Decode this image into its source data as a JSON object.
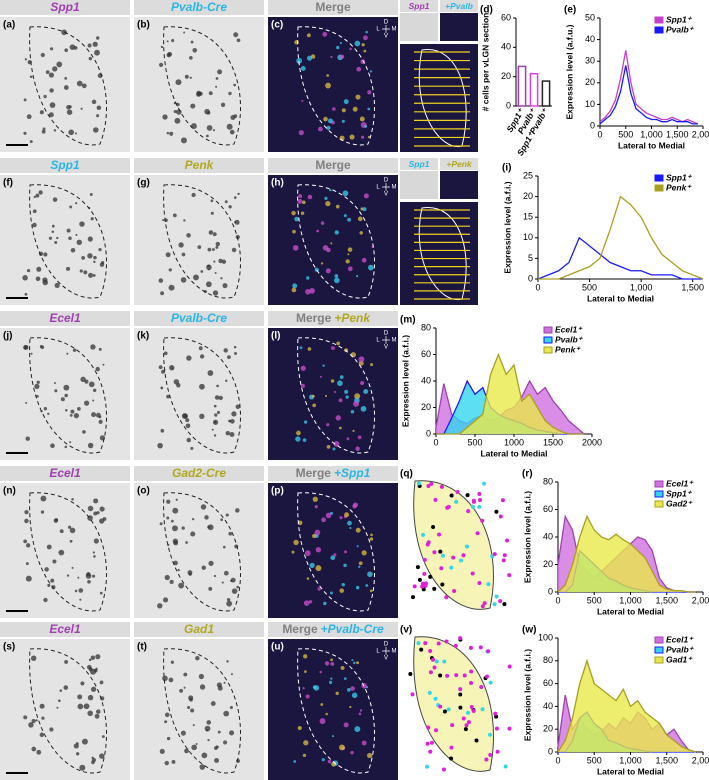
{
  "panels": [
    {
      "letter": "(a)",
      "title": "Spp1",
      "color": "#a040b0"
    },
    {
      "letter": "(b)",
      "title": "Pvalb-Cre",
      "color": "#29b6e6"
    },
    {
      "letter": "(c)",
      "title": "Merge",
      "color": "#808080"
    },
    {
      "letter": "(f)",
      "title": "Spp1",
      "color": "#29b6e6"
    },
    {
      "letter": "(g)",
      "title": "Penk",
      "color": "#b0a820"
    },
    {
      "letter": "(h)",
      "title": "Merge",
      "color": "#808080"
    },
    {
      "letter": "(j)",
      "title": "Ecel1",
      "color": "#a040b0"
    },
    {
      "letter": "(k)",
      "title": "Pvalb-Cre",
      "color": "#29b6e6"
    },
    {
      "letter": "(l)",
      "title": "Merge",
      "color": "#808080",
      "suffix": "+Penk",
      "suffix_color": "#b0a820"
    },
    {
      "letter": "(n)",
      "title": "Ecel1",
      "color": "#a040b0"
    },
    {
      "letter": "(o)",
      "title": "Gad2-Cre",
      "color": "#b0a820"
    },
    {
      "letter": "(p)",
      "title": "Merge",
      "color": "#808080",
      "suffix": "+Spp1",
      "suffix_color": "#29b6e6"
    },
    {
      "letter": "(s)",
      "title": "Ecel1",
      "color": "#a040b0"
    },
    {
      "letter": "(t)",
      "title": "Gad1",
      "color": "#b0a820"
    },
    {
      "letter": "(u)",
      "title": "Merge",
      "color": "#808080",
      "suffix": "+Pvalb-Cre",
      "suffix_color": "#29b6e6"
    }
  ],
  "insets": [
    [
      {
        "label": "Spp1",
        "color": "#a040b0"
      },
      {
        "label": "+Pvalb",
        "color": "#29b6e6"
      }
    ],
    [
      {
        "label": "Spp1",
        "color": "#29b6e6"
      },
      {
        "label": "+Penk",
        "color": "#b0a820"
      }
    ]
  ],
  "compass": {
    "d": "D",
    "v": "V",
    "l": "L",
    "m": "M"
  },
  "diagrams": [
    {
      "letter": "(q)"
    },
    {
      "letter": "(v)"
    }
  ],
  "chart_data": [
    {
      "type": "bar",
      "label": "(d)",
      "ylabel": "# cells per vLGN section",
      "categories": [
        "Spp1⁺",
        "Pvalb⁺",
        "Spp1⁺Pvalb⁺"
      ],
      "values": [
        27,
        22,
        17
      ],
      "colors": [
        "#a040b0",
        "#e040e0",
        "#222222"
      ],
      "ylim": [
        0,
        60
      ],
      "yticks": [
        0,
        20,
        40,
        60
      ]
    },
    {
      "type": "line",
      "label": "(e)",
      "ylabel": "Expression level (a.f.u.)",
      "xlabel": "Lateral to Medial",
      "x": [
        0,
        100,
        200,
        300,
        400,
        500,
        600,
        700,
        800,
        900,
        1000,
        1100,
        1200,
        1300,
        1400,
        1500,
        1600,
        1700,
        1800,
        1900
      ],
      "series": [
        {
          "name": "Spp1⁺",
          "color": "#c43ed0",
          "values": [
            2,
            4,
            7,
            12,
            22,
            35,
            20,
            10,
            8,
            6,
            5,
            4,
            3,
            3,
            4,
            3,
            2,
            3,
            2,
            1
          ]
        },
        {
          "name": "Pvalb⁺",
          "color": "#1a1aff",
          "values": [
            1,
            3,
            5,
            9,
            16,
            28,
            15,
            8,
            6,
            4,
            3,
            3,
            2,
            2,
            3,
            2,
            2,
            2,
            1,
            1
          ]
        }
      ],
      "xlim": [
        0,
        2000
      ],
      "ylim": [
        0,
        50
      ],
      "xticks": [
        0,
        500,
        {
          "value": 1000,
          "label": "1,000"
        },
        {
          "value": 1500,
          "label": "1,500"
        },
        {
          "value": 2000,
          "label": "2,000"
        }
      ],
      "yticks": [
        0,
        10,
        20,
        30,
        40,
        50
      ]
    },
    {
      "type": "line",
      "label": "(i)",
      "ylabel": "Expression level (a.f.i.)",
      "xlabel": "Lateral to Medial",
      "x": [
        0,
        100,
        200,
        300,
        400,
        500,
        600,
        700,
        800,
        900,
        1000,
        1100,
        1200,
        1300,
        1400,
        1500,
        1600
      ],
      "series": [
        {
          "name": "Spp1⁺",
          "color": "#1a1aff",
          "values": [
            0,
            1,
            2,
            4,
            10,
            8,
            6,
            4,
            3,
            2,
            2,
            1,
            1,
            1,
            0,
            0,
            0
          ]
        },
        {
          "name": "Penk⁺",
          "color": "#a8a020",
          "values": [
            0,
            0,
            0,
            1,
            2,
            3,
            5,
            12,
            20,
            18,
            15,
            10,
            6,
            4,
            2,
            1,
            0
          ]
        }
      ],
      "xlim": [
        0,
        1600
      ],
      "ylim": [
        0,
        25
      ],
      "xticks": [
        0,
        500,
        {
          "value": 1000,
          "label": "1,000"
        },
        {
          "value": 1500,
          "label": "1,500"
        }
      ],
      "yticks": [
        0,
        5,
        10,
        15,
        20,
        25
      ]
    },
    {
      "type": "area",
      "label": "(m)",
      "ylabel": "Expression level (a.f.i.)",
      "xlabel": "Lateral to Medial",
      "x": [
        0,
        100,
        200,
        300,
        400,
        500,
        600,
        700,
        800,
        900,
        1000,
        1100,
        1200,
        1300,
        1400,
        1500,
        1600,
        1700,
        1800,
        1900
      ],
      "series": [
        {
          "name": "Ecel1⁺",
          "color": "#a040b0",
          "fill": "#d070e0",
          "values": [
            5,
            38,
            15,
            10,
            8,
            12,
            14,
            10,
            12,
            18,
            20,
            28,
            40,
            30,
            35,
            25,
            18,
            10,
            5,
            0
          ]
        },
        {
          "name": "Pvalb⁺",
          "color": "#1a1aff",
          "fill": "#33d6f0",
          "values": [
            0,
            0,
            12,
            25,
            40,
            30,
            35,
            20,
            15,
            12,
            10,
            8,
            5,
            3,
            2,
            1,
            0,
            0,
            0,
            0
          ]
        },
        {
          "name": "Penk⁺",
          "color": "#a8a020",
          "fill": "#e8e84a",
          "values": [
            0,
            0,
            0,
            0,
            5,
            10,
            15,
            45,
            60,
            45,
            52,
            25,
            30,
            20,
            10,
            5,
            2,
            0,
            0,
            0
          ]
        }
      ],
      "xlim": [
        0,
        2000
      ],
      "ylim": [
        0,
        80
      ],
      "xticks": [
        0,
        500,
        1000,
        1500,
        2000
      ],
      "yticks": [
        0,
        20,
        40,
        60,
        80
      ]
    },
    {
      "type": "area",
      "label": "(r)",
      "ylabel": "Expression level (a.f.i.)",
      "xlabel": "Lateral to Medial",
      "x": [
        0,
        100,
        200,
        300,
        400,
        500,
        600,
        700,
        800,
        900,
        1000,
        1100,
        1200,
        1300,
        1400,
        1500,
        1600,
        1700,
        1800,
        1900
      ],
      "series": [
        {
          "name": "Ecel1⁺",
          "color": "#a040b0",
          "fill": "#d070e0",
          "values": [
            20,
            55,
            45,
            20,
            15,
            10,
            15,
            20,
            25,
            30,
            35,
            40,
            38,
            30,
            10,
            3,
            1,
            0,
            0,
            0
          ]
        },
        {
          "name": "Spp1⁺",
          "color": "#1a1aff",
          "fill": "#33d6f0",
          "values": [
            0,
            0,
            5,
            30,
            25,
            20,
            15,
            10,
            8,
            5,
            3,
            2,
            1,
            0,
            0,
            0,
            0,
            0,
            0,
            0
          ]
        },
        {
          "name": "Gad2⁺",
          "color": "#a8a020",
          "fill": "#e8e84a",
          "values": [
            0,
            5,
            20,
            40,
            55,
            45,
            40,
            38,
            42,
            38,
            35,
            30,
            25,
            15,
            5,
            2,
            1,
            1,
            0,
            0
          ]
        }
      ],
      "xlim": [
        0,
        2000
      ],
      "ylim": [
        0,
        80
      ],
      "xticks": [
        0,
        500,
        {
          "value": 1000,
          "label": "1,000"
        },
        {
          "value": 1500,
          "label": "1,500"
        },
        {
          "value": 2000,
          "label": "2,000"
        }
      ],
      "yticks": [
        0,
        20,
        40,
        60,
        80
      ]
    },
    {
      "type": "area",
      "label": "(w)",
      "ylabel": "Expression level (a.f.i.)",
      "xlabel": "Lateral to Medial",
      "x": [
        0,
        100,
        200,
        300,
        400,
        500,
        600,
        700,
        800,
        900,
        1000,
        1100,
        1200,
        1300,
        1400,
        1500,
        1600,
        1700,
        1800,
        1900
      ],
      "series": [
        {
          "name": "Ecel1⁺",
          "color": "#a040b0",
          "fill": "#d070e0",
          "values": [
            5,
            50,
            20,
            30,
            20,
            15,
            18,
            25,
            20,
            30,
            25,
            35,
            30,
            20,
            25,
            15,
            20,
            10,
            2,
            0
          ]
        },
        {
          "name": "Pvalb⁺",
          "color": "#1a1aff",
          "fill": "#33d6f0",
          "values": [
            0,
            0,
            10,
            30,
            35,
            25,
            20,
            10,
            8,
            5,
            3,
            2,
            1,
            0,
            0,
            0,
            0,
            0,
            0,
            0
          ]
        },
        {
          "name": "Gad1⁺",
          "color": "#a8a020",
          "fill": "#e8e84a",
          "values": [
            0,
            10,
            30,
            60,
            80,
            60,
            55,
            50,
            45,
            55,
            40,
            45,
            35,
            30,
            25,
            15,
            10,
            5,
            2,
            0
          ]
        }
      ],
      "xlim": [
        0,
        2000
      ],
      "ylim": [
        0,
        100
      ],
      "xticks": [
        0,
        500,
        {
          "value": 1000,
          "label": "1,000"
        },
        {
          "value": 1500,
          "label": "1,500"
        },
        {
          "value": 2000,
          "label": "2,000"
        }
      ],
      "yticks": [
        0,
        20,
        40,
        60,
        80,
        100
      ]
    }
  ]
}
